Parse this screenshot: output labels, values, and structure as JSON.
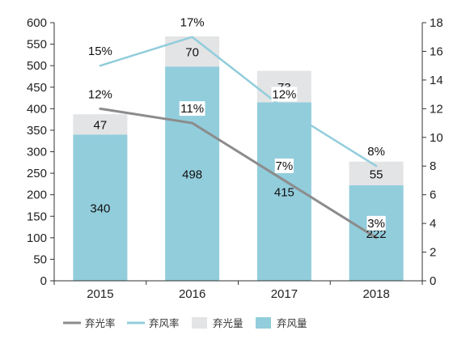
{
  "chart_data": {
    "type": "bar",
    "categories": [
      "2015",
      "2016",
      "2017",
      "2018"
    ],
    "series": [
      {
        "name": "弃风量",
        "kind": "bar",
        "axis": "left",
        "color": "#92cddc",
        "values": [
          340,
          498,
          415,
          222
        ]
      },
      {
        "name": "弃光量",
        "kind": "bar",
        "axis": "left",
        "color": "#e3e4e5",
        "values": [
          47,
          70,
          73,
          55
        ]
      },
      {
        "name": "弃光率",
        "kind": "line",
        "axis": "right",
        "color": "#8c8c8c",
        "values": [
          12,
          11,
          7,
          3
        ],
        "value_labels": [
          "12%",
          "11%",
          "7%",
          "3%"
        ]
      },
      {
        "name": "弃风率",
        "kind": "line",
        "axis": "right",
        "color": "#92cddc",
        "values": [
          15,
          17,
          12,
          8
        ],
        "value_labels": [
          "15%",
          "17%",
          "12%",
          "8%"
        ]
      }
    ],
    "left_axis": {
      "min": 0,
      "max": 600,
      "ticks": [
        "0",
        "50",
        "100",
        "150",
        "200",
        "250",
        "300",
        "350",
        "400",
        "450",
        "500",
        "550",
        "600"
      ]
    },
    "right_axis": {
      "min": 0,
      "max": 18,
      "ticks": [
        "0",
        "2",
        "4",
        "6",
        "8",
        "10",
        "12",
        "14",
        "16",
        "18"
      ]
    },
    "stacked": true,
    "grid": false,
    "legend_position": "bottom",
    "legend": [
      {
        "label": "弃光率",
        "symbol": "line",
        "color": "#8c8c8c"
      },
      {
        "label": "弃风率",
        "symbol": "line",
        "color": "#92cddc"
      },
      {
        "label": "弃光量",
        "symbol": "box",
        "color": "#e3e4e5"
      },
      {
        "label": "弃风量",
        "symbol": "box",
        "color": "#92cddc"
      }
    ]
  }
}
